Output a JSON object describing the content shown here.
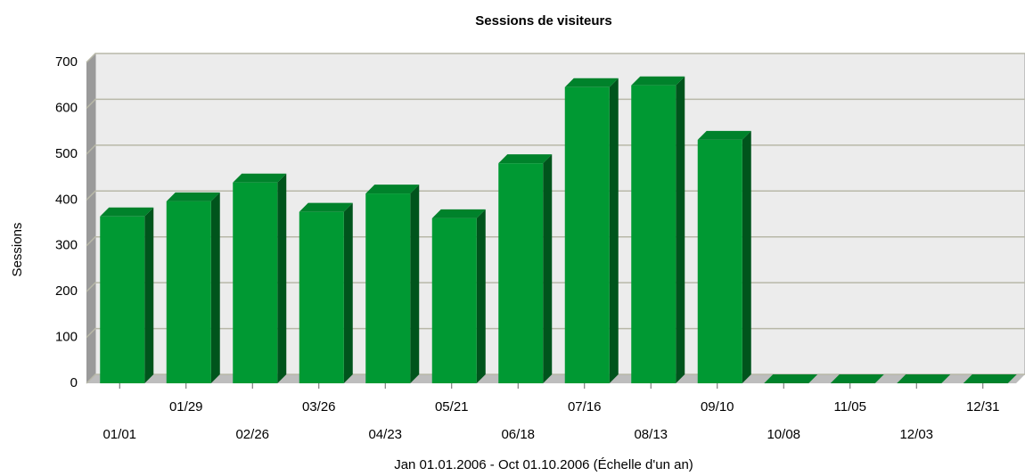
{
  "chart_data": {
    "type": "bar3d",
    "title": "Sessions de visiteurs",
    "x_label": "Jan 01.01.2006 - Oct 01.10.2006 (Échelle d'un an)",
    "y_label": "Sessions",
    "categories": [
      "01/01",
      "01/29",
      "02/26",
      "03/26",
      "04/23",
      "05/21",
      "06/18",
      "07/16",
      "08/13",
      "09/10",
      "10/08",
      "11/05",
      "12/03",
      "12/31"
    ],
    "values": [
      364,
      397,
      438,
      374,
      414,
      360,
      480,
      646,
      650,
      531,
      0,
      0,
      0,
      0
    ],
    "color": "#009933",
    "ylim": [
      0,
      700
    ],
    "yticks": [
      0,
      100,
      200,
      300,
      400,
      500,
      600,
      700
    ],
    "grid": true
  }
}
